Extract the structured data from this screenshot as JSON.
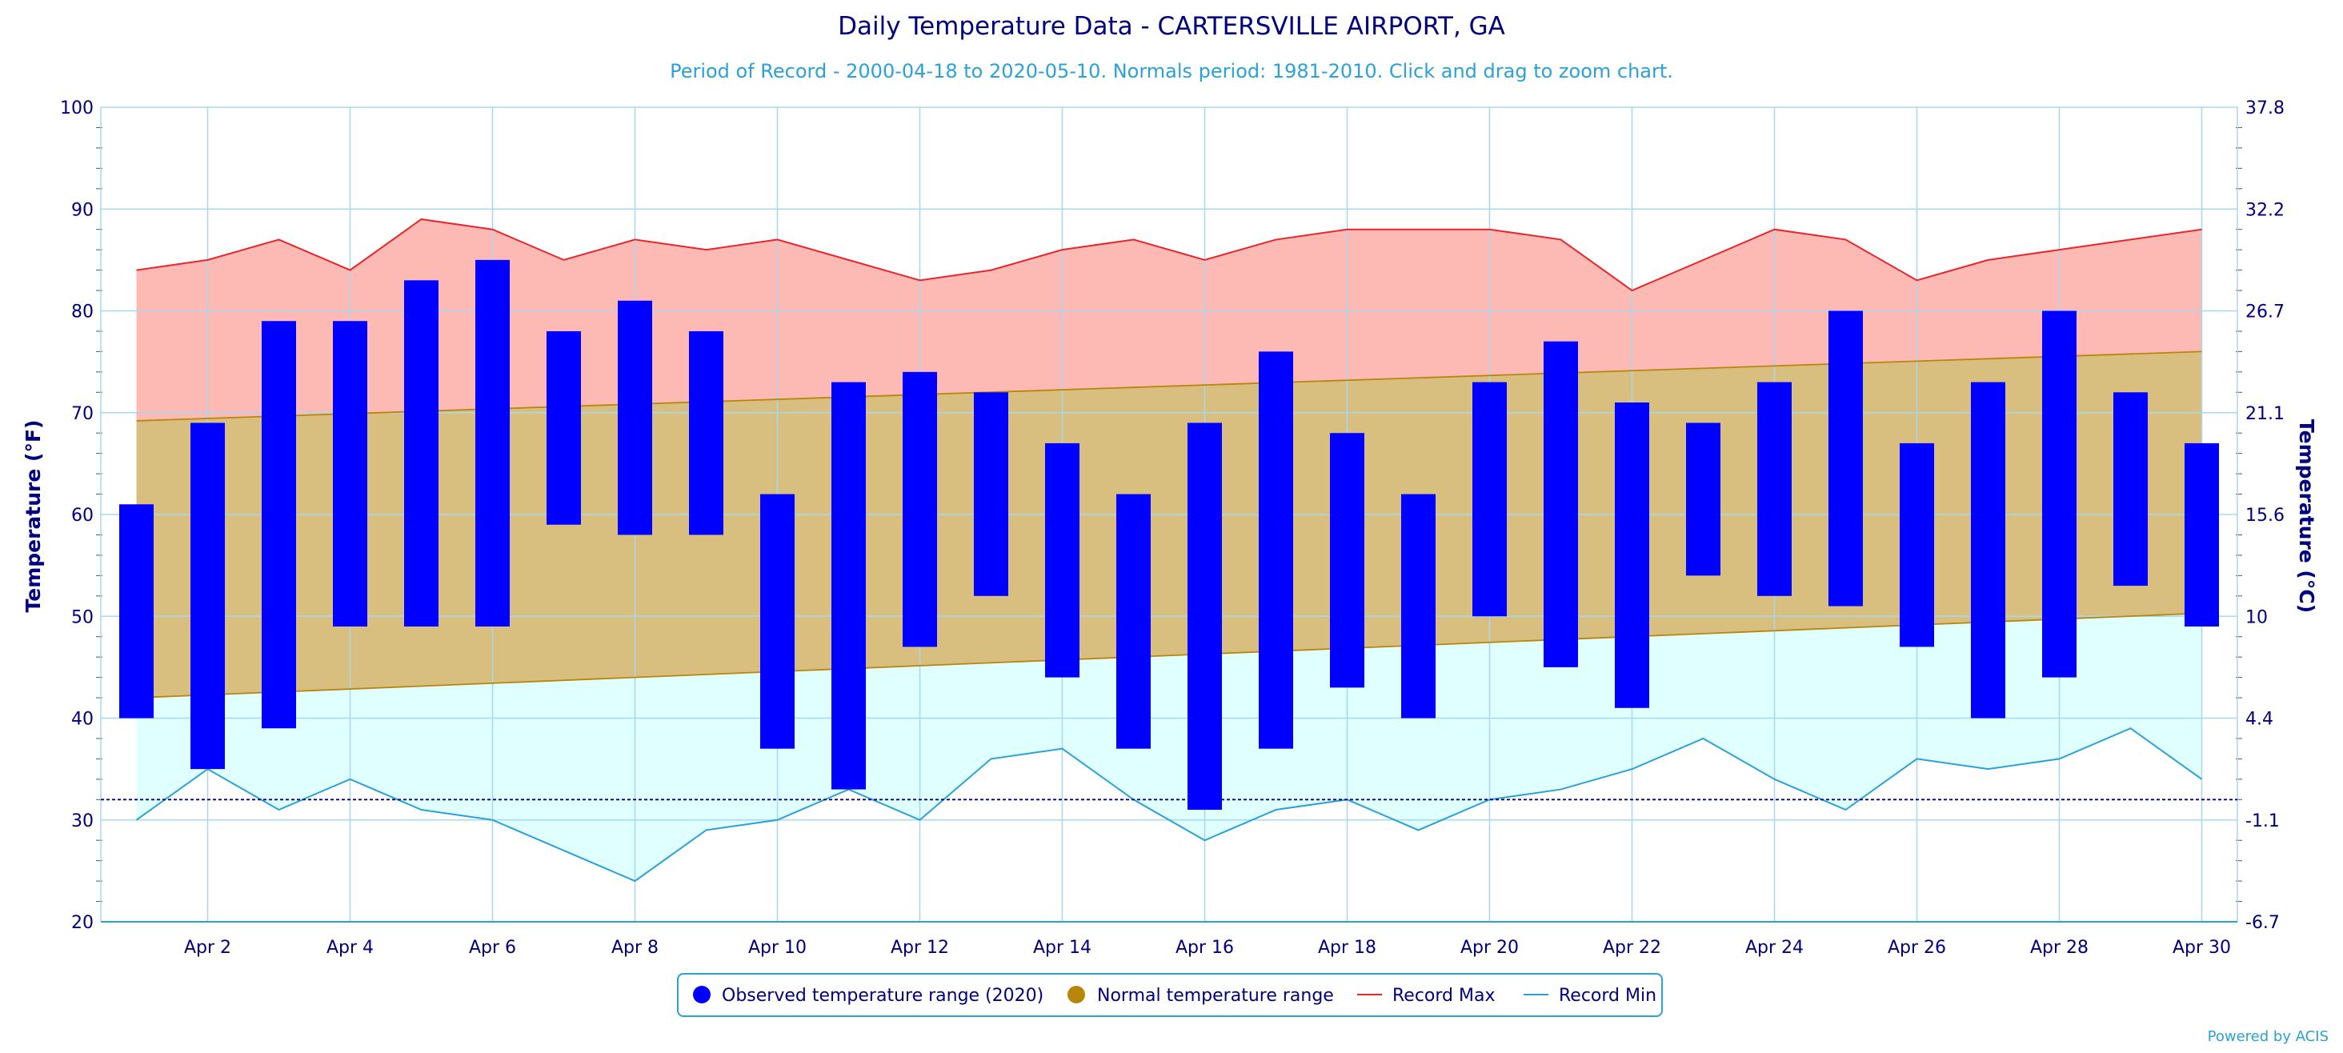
{
  "chart_data": {
    "type": "bar",
    "title": "Daily Temperature Data - CARTERSVILLE AIRPORT, GA",
    "subtitle": "Period of Record - 2000-04-18 to 2020-05-10. Normals period: 1981-2010. Click and drag to zoom chart.",
    "ylabel": "Temperature (°F)",
    "ylabel_right": "Temperature (°C)",
    "ylim": [
      20,
      100
    ],
    "y_ticks": [
      20,
      30,
      40,
      50,
      60,
      70,
      80,
      90,
      100
    ],
    "y_ticks_right": [
      "-6.7",
      "-1.1",
      "4.4",
      "10",
      "15.6",
      "21.1",
      "26.7",
      "32.2",
      "37.8"
    ],
    "x_range": [
      1,
      30
    ],
    "x_ticks": [
      {
        "day": 2,
        "label": "Apr 2"
      },
      {
        "day": 4,
        "label": "Apr 4"
      },
      {
        "day": 6,
        "label": "Apr 6"
      },
      {
        "day": 8,
        "label": "Apr 8"
      },
      {
        "day": 10,
        "label": "Apr 10"
      },
      {
        "day": 12,
        "label": "Apr 12"
      },
      {
        "day": 14,
        "label": "Apr 14"
      },
      {
        "day": 16,
        "label": "Apr 16"
      },
      {
        "day": 18,
        "label": "Apr 18"
      },
      {
        "day": 20,
        "label": "Apr 20"
      },
      {
        "day": 22,
        "label": "Apr 22"
      },
      {
        "day": 24,
        "label": "Apr 24"
      },
      {
        "day": 26,
        "label": "Apr 26"
      },
      {
        "day": 28,
        "label": "Apr 28"
      },
      {
        "day": 30,
        "label": "Apr 30"
      }
    ],
    "freezing_line": 32,
    "grid": true,
    "legend_position": "bottom-center",
    "series": [
      {
        "name": "Observed temperature range (2020)",
        "type": "range-bar",
        "color": "#0000ff",
        "days": [
          1,
          2,
          3,
          4,
          5,
          6,
          7,
          8,
          9,
          10,
          11,
          12,
          13,
          14,
          15,
          16,
          17,
          18,
          19,
          20,
          21,
          22,
          23,
          24,
          25,
          26,
          27,
          28,
          29,
          30
        ],
        "low": [
          40,
          35,
          39,
          49,
          49,
          49,
          59,
          58,
          58,
          37,
          33,
          47,
          52,
          44,
          37,
          31,
          37,
          43,
          40,
          50,
          45,
          41,
          54,
          52,
          51,
          47,
          40,
          44,
          53,
          49
        ],
        "high": [
          61,
          69,
          79,
          79,
          83,
          85,
          78,
          81,
          78,
          62,
          73,
          74,
          72,
          67,
          62,
          69,
          76,
          68,
          62,
          73,
          77,
          71,
          69,
          73,
          80,
          67,
          73,
          80,
          72,
          67
        ]
      },
      {
        "name": "Normal temperature range",
        "type": "range-area",
        "color": "#b8860b",
        "fill": "#d9bf7f",
        "days": [
          1,
          30
        ],
        "low": [
          42,
          50.3
        ],
        "high": [
          69.2,
          76
        ]
      },
      {
        "name": "Record Max",
        "type": "line",
        "color": "#e8262b",
        "fill": "#fdb9b3",
        "days": [
          1,
          2,
          3,
          4,
          5,
          6,
          7,
          8,
          9,
          10,
          11,
          12,
          13,
          14,
          15,
          16,
          17,
          18,
          19,
          20,
          21,
          22,
          23,
          24,
          25,
          26,
          27,
          28,
          29,
          30
        ],
        "values": [
          84,
          85,
          87,
          84,
          89,
          88,
          85,
          87,
          86,
          87,
          85,
          83,
          84,
          86,
          87,
          85,
          87,
          88,
          88,
          88,
          87,
          82,
          85,
          88,
          87,
          83,
          85,
          86,
          87,
          88
        ]
      },
      {
        "name": "Record Min",
        "type": "line",
        "color": "#2aa1d8",
        "fill": "#e0ffff",
        "days": [
          1,
          2,
          3,
          4,
          5,
          6,
          7,
          8,
          9,
          10,
          11,
          12,
          13,
          14,
          15,
          16,
          17,
          18,
          19,
          20,
          21,
          22,
          23,
          24,
          25,
          26,
          27,
          28,
          29,
          30
        ],
        "values": [
          30,
          35,
          31,
          34,
          31,
          30,
          27,
          24,
          29,
          30,
          33,
          30,
          36,
          37,
          32,
          28,
          31,
          32,
          29,
          32,
          33,
          35,
          38,
          34,
          31,
          36,
          35,
          36,
          39,
          34
        ]
      }
    ]
  },
  "legend": {
    "items": [
      {
        "label": "Observed temperature range (2020)",
        "color": "#0000ff",
        "marker": "circle"
      },
      {
        "label": "Normal temperature range",
        "color": "#b8860b",
        "marker": "circle"
      },
      {
        "label": "Record Max",
        "color": "#e8262b",
        "marker": "line"
      },
      {
        "label": "Record Min",
        "color": "#2aa1d8",
        "marker": "line"
      }
    ]
  },
  "credits": "Powered by ACIS",
  "colors": {
    "grid": "#a8d8f0",
    "axis_text": "#00007f",
    "freeze_line": "#00007f"
  }
}
